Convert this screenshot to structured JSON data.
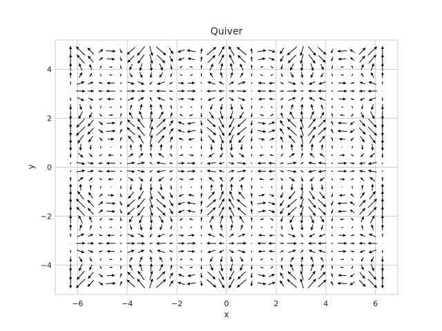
{
  "chart_data": {
    "type": "quiver",
    "title": "Quiver",
    "xlabel": "x",
    "ylabel": "y",
    "xlim": [
      -6.9,
      6.9
    ],
    "ylim": [
      -5.2,
      5.2
    ],
    "xticks": [
      {
        "value": -6,
        "label": "−6"
      },
      {
        "value": -4,
        "label": "−4"
      },
      {
        "value": -2,
        "label": "−2"
      },
      {
        "value": 0,
        "label": "0"
      },
      {
        "value": 2,
        "label": "2"
      },
      {
        "value": 4,
        "label": "4"
      },
      {
        "value": 6,
        "label": "6"
      }
    ],
    "yticks": [
      {
        "value": -4,
        "label": "−4"
      },
      {
        "value": -2,
        "label": "−2"
      },
      {
        "value": 0,
        "label": "0"
      },
      {
        "value": 2,
        "label": "2"
      },
      {
        "value": 4,
        "label": "4"
      }
    ],
    "grid": true,
    "field": {
      "x_range": [
        -6.283,
        6.283
      ],
      "y_range": [
        -4.75,
        4.75
      ],
      "nx": 32,
      "ny": 30,
      "u": "sin(3x) * cos(2y)",
      "v": "-cos(x) * sin(y)"
    },
    "colors": {
      "arrow": "#000000",
      "grid": "#cccccc",
      "spine": "#cccccc",
      "text": "#262626"
    }
  }
}
